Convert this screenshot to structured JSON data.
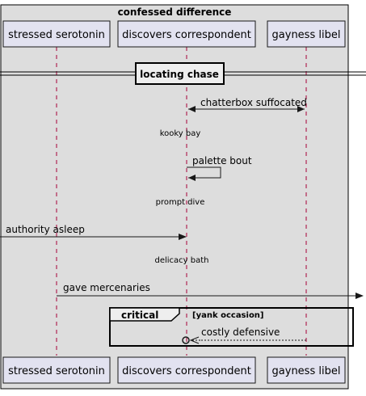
{
  "group_title": "confessed difference",
  "participants": [
    {
      "label": "stressed serotonin"
    },
    {
      "label": "discovers correspondent"
    },
    {
      "label": "gayness libel"
    }
  ],
  "divider_label": "locating chase",
  "messages": {
    "chatterbox": "chatterbox suffocated",
    "kooky": "kooky bay",
    "palette": "palette bout",
    "prompt": "prompt dive",
    "authority": "authority asleep",
    "delicacy": "delicacy bath",
    "gave": "gave mercenaries",
    "costly": "costly defensive"
  },
  "critical": {
    "keyword": "critical",
    "condition": "[yank occasion]"
  },
  "colors": {
    "group_bg": "#dddddd",
    "participant_fill": "#e2e2f0",
    "lifeline": "#a80036",
    "line": "#181818"
  }
}
